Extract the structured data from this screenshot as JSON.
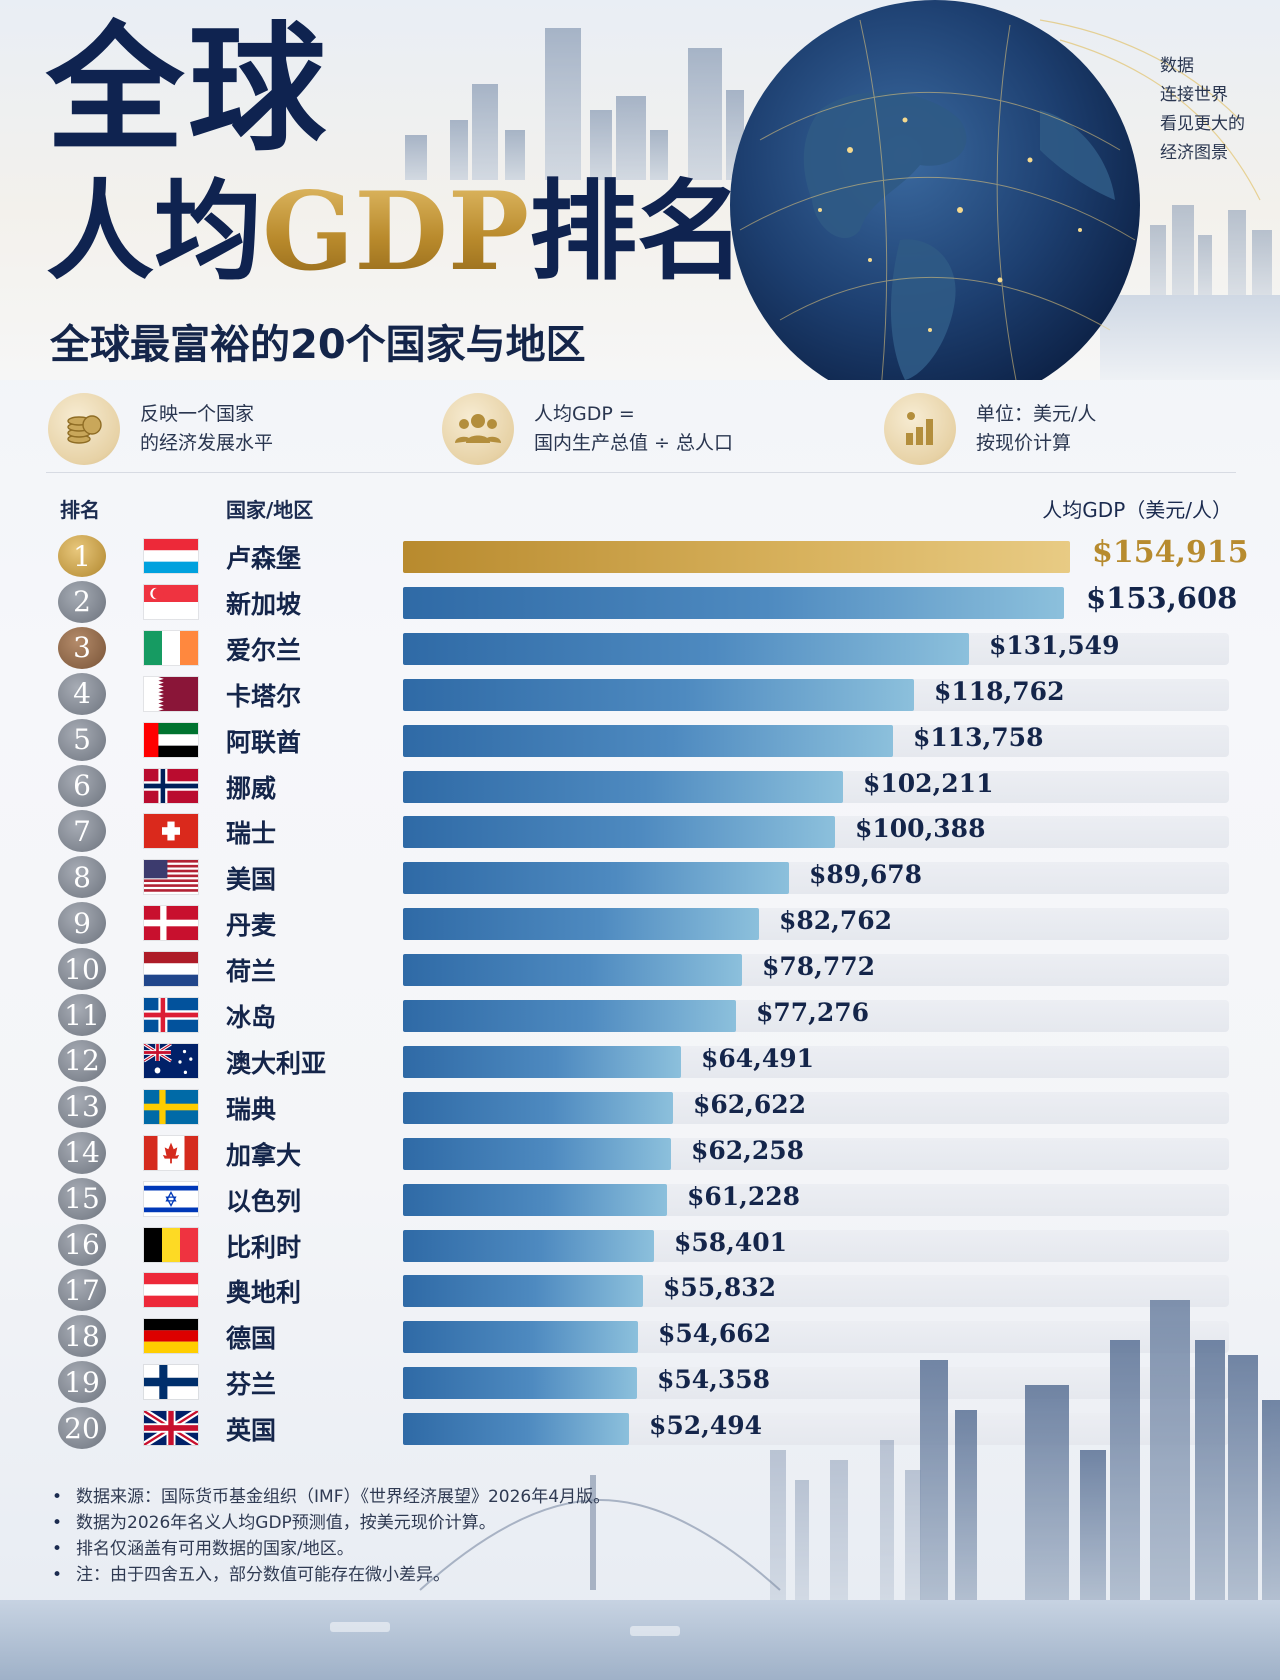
{
  "header": {
    "title_line1": "全球",
    "title_line2_pre": "人均",
    "title_line2_gdp": "GDP",
    "title_line2_post": "排名",
    "subtitle": "全球最富裕的20个国家与地区",
    "tagline": [
      "数据",
      "连接世界",
      "看见更大的",
      "经济图景"
    ]
  },
  "info": [
    {
      "icon": "coins-icon",
      "lines": [
        "反映一个国家",
        "的经济发展水平"
      ]
    },
    {
      "icon": "people-icon",
      "lines": [
        "人均GDP =",
        "国内生产总值 ÷ 总人口"
      ]
    },
    {
      "icon": "bar-chart-icon",
      "lines": [
        "单位：美元/人",
        "按现价计算"
      ]
    }
  ],
  "columns": {
    "rank": "排名",
    "country": "国家/地区",
    "value": "人均GDP（美元/人）"
  },
  "colors": {
    "gold": "#b78b2f",
    "silver": "#8a9099",
    "bronze": "#8a6a4c",
    "navy": "#14254a",
    "bar": "#3f7db6"
  },
  "chart_data": {
    "type": "bar",
    "orientation": "horizontal",
    "title": "人均GDP排名",
    "ylabel": "人均GDP（美元/人）",
    "xlim": [
      0,
      154915
    ],
    "categories": [
      "卢森堡",
      "新加坡",
      "爱尔兰",
      "卡塔尔",
      "阿联酋",
      "挪威",
      "瑞士",
      "美国",
      "丹麦",
      "荷兰",
      "冰岛",
      "澳大利亚",
      "瑞典",
      "加拿大",
      "以色列",
      "比利时",
      "奥地利",
      "德国",
      "芬兰",
      "英国"
    ],
    "ranks": [
      "1",
      "2",
      "3",
      "4",
      "5",
      "6",
      "7",
      "8",
      "9",
      "10",
      "11",
      "12",
      "13",
      "14",
      "15",
      "16",
      "17",
      "18",
      "19",
      "20"
    ],
    "flags": [
      "luxembourg",
      "singapore",
      "ireland",
      "qatar",
      "uae",
      "norway",
      "switzerland",
      "usa",
      "denmark",
      "netherlands",
      "iceland",
      "australia",
      "sweden",
      "canada",
      "israel",
      "belgium",
      "austria",
      "germany",
      "finland",
      "uk"
    ],
    "values": [
      154915,
      153608,
      131549,
      118762,
      113758,
      102211,
      100388,
      89678,
      82762,
      78772,
      77276,
      64491,
      62622,
      62258,
      61228,
      58401,
      55832,
      54662,
      54358,
      52494
    ],
    "labels": [
      "$154,915",
      "$153,608",
      "$131,549",
      "$118,762",
      "$113,758",
      "$102,211",
      "$100,388",
      "$89,678",
      "$82,762",
      "$78,772",
      "$77,276",
      "$64,491",
      "$62,622",
      "$62,258",
      "$61,228",
      "$58,401",
      "$55,832",
      "$54,662",
      "$54,358",
      "$52,494"
    ]
  },
  "notes": [
    "数据来源：国际货币基金组织（IMF）《世界经济展望》2026年4月版。",
    "数据为2026年名义人均GDP预测值，按美元现价计算。",
    "排名仅涵盖有可用数据的国家/地区。",
    "注：由于四舍五入，部分数值可能存在微小差异。"
  ]
}
